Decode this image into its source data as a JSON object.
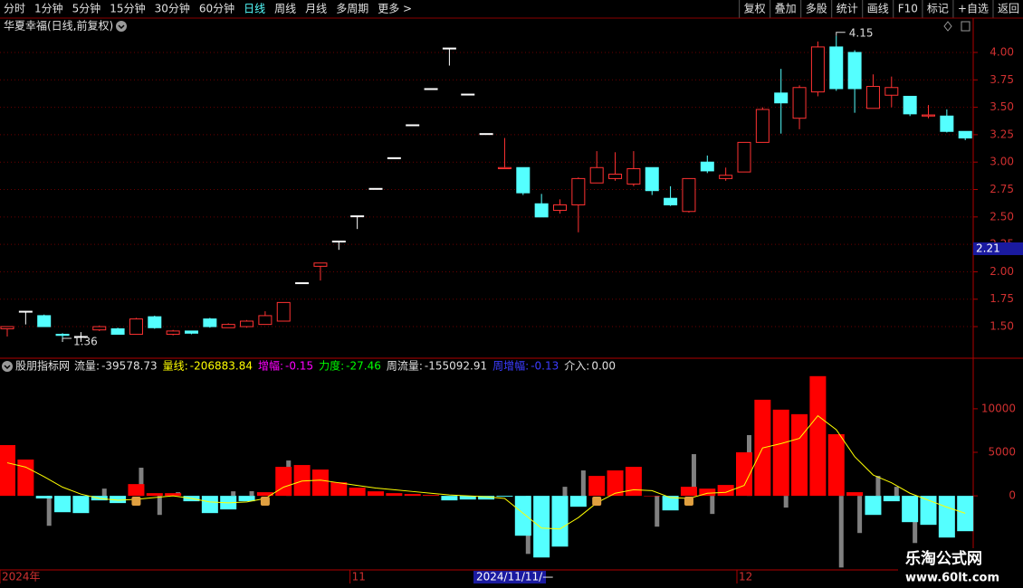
{
  "toolbar": {
    "left": [
      "分时",
      "1分钟",
      "5分钟",
      "15分钟",
      "30分钟",
      "60分钟",
      "日线",
      "周线",
      "月线",
      "多周期",
      "更多 >"
    ],
    "right": [
      "复权",
      "叠加",
      "多股",
      "统计",
      "画线",
      "F10",
      "标记",
      "+自选",
      "返回"
    ]
  },
  "cursor_date": "2024/11/11/—",
  "watermark": {
    "title": "乐淘公式网",
    "url": "www.60lt.com"
  },
  "chart_data": [
    {
      "type": "candlestick",
      "title": "华夏幸福(日线,前复权)",
      "categories": [
        "2024年",
        null,
        null,
        null,
        null,
        null,
        null,
        null,
        null,
        null,
        null,
        null,
        null,
        null,
        null,
        null,
        null,
        null,
        null,
        "11",
        null,
        null,
        null,
        null,
        null,
        null,
        null,
        null,
        null,
        null,
        null,
        null,
        null,
        null,
        null,
        null,
        null,
        null,
        null,
        null,
        "12",
        null,
        null,
        null,
        null,
        null,
        null,
        null,
        null,
        null,
        null,
        null,
        null
      ],
      "open": [
        1.48,
        1.64,
        1.6,
        1.43,
        1.41,
        1.47,
        1.48,
        1.43,
        1.59,
        1.43,
        1.46,
        1.57,
        1.49,
        1.5,
        1.52,
        1.55,
        1.9,
        2.05,
        2.28,
        2.51,
        2.76,
        3.04,
        3.34,
        3.67,
        4.04,
        3.62,
        3.26,
        2.94,
        2.95,
        2.62,
        2.56,
        2.61,
        2.81,
        2.85,
        2.8,
        2.95,
        2.67,
        2.55,
        3.0,
        2.85,
        2.91,
        3.18,
        3.63,
        3.4,
        3.64,
        4.05,
        4.0,
        3.49,
        3.61,
        3.6,
        3.42,
        3.42,
        3.28
      ],
      "high": [
        1.5,
        1.64,
        1.61,
        1.44,
        1.45,
        1.51,
        1.49,
        1.58,
        1.6,
        1.47,
        1.46,
        1.58,
        1.53,
        1.56,
        1.64,
        1.72,
        1.9,
        2.08,
        2.28,
        2.51,
        2.76,
        3.04,
        3.34,
        3.67,
        4.04,
        3.62,
        3.26,
        3.22,
        2.95,
        2.71,
        2.66,
        2.86,
        3.1,
        3.09,
        3.1,
        2.95,
        2.78,
        2.85,
        3.06,
        2.95,
        3.18,
        3.5,
        3.85,
        3.7,
        4.1,
        4.15,
        4.02,
        3.8,
        3.78,
        3.6,
        3.52,
        3.48,
        3.28
      ],
      "low": [
        1.41,
        1.52,
        1.5,
        1.36,
        1.36,
        1.46,
        1.43,
        1.43,
        1.48,
        1.42,
        1.43,
        1.49,
        1.49,
        1.49,
        1.52,
        1.55,
        1.9,
        1.92,
        2.2,
        2.39,
        2.76,
        3.04,
        3.34,
        3.67,
        3.88,
        3.62,
        3.26,
        2.94,
        2.7,
        2.5,
        2.53,
        2.36,
        2.81,
        2.83,
        2.78,
        2.7,
        2.6,
        2.54,
        2.9,
        2.83,
        2.91,
        3.18,
        3.26,
        3.3,
        3.6,
        3.65,
        3.45,
        3.49,
        3.5,
        3.42,
        3.4,
        3.27,
        3.2
      ],
      "close": [
        1.5,
        1.64,
        1.5,
        1.42,
        1.41,
        1.5,
        1.43,
        1.57,
        1.49,
        1.46,
        1.44,
        1.5,
        1.52,
        1.55,
        1.6,
        1.72,
        1.9,
        2.08,
        2.28,
        2.51,
        2.76,
        3.04,
        3.34,
        3.67,
        4.04,
        3.62,
        3.26,
        2.95,
        2.72,
        2.5,
        2.61,
        2.85,
        2.95,
        2.89,
        2.94,
        2.74,
        2.61,
        2.85,
        2.92,
        2.88,
        3.18,
        3.48,
        3.54,
        3.68,
        4.05,
        3.67,
        3.67,
        3.69,
        3.68,
        3.44,
        3.43,
        3.28,
        3.22
      ],
      "up_color": "#ff3232",
      "down_color": "#54ffff",
      "flat_color": "#ffffff",
      "max_price": 4.15,
      "min_price": 1.36,
      "cursor_price": 2.21,
      "ylim": [
        1.22,
        4.3
      ],
      "yticks": [
        {
          "value": 1.5,
          "label": "1.50"
        },
        1.75,
        {
          "value": 2,
          "label": "2.00"
        },
        2.25,
        {
          "value": 2.5,
          "label": "2.50"
        },
        2.75,
        {
          "value": 3,
          "label": "3.00"
        },
        3.25,
        {
          "value": 3.5,
          "label": "3.50"
        },
        3.75,
        {
          "value": 4,
          "label": "4.00"
        }
      ],
      "grid": true
    },
    {
      "type": "bar",
      "title": "股朋指标网",
      "legend": [
        {
          "name": "流量",
          "value": "-39578.73",
          "color": "#e0e0e0"
        },
        {
          "name": "量线",
          "value": "-206883.84",
          "color": "#ffff00"
        },
        {
          "name": "增幅",
          "value": "-0.15",
          "color": "#ff00ff"
        },
        {
          "name": "力度",
          "value": "-27.46",
          "color": "#00ff00"
        },
        {
          "name": "周流量",
          "value": "-155092.91",
          "color": "#e0e0e0"
        },
        {
          "name": "周增幅",
          "value": "-0.13",
          "color": "#3c3cff"
        },
        {
          "name": "介入",
          "value": "0.00",
          "color": "#e0e0e0"
        }
      ],
      "series": [
        {
          "kind": "bar",
          "up_color": "#ff0000",
          "down_color": "#54ffff",
          "values": [
            5830,
            4170,
            -300,
            -1880,
            -1980,
            -520,
            -830,
            1350,
            310,
            310,
            -620,
            -1980,
            -1560,
            -620,
            420,
            3330,
            3540,
            3020,
            1560,
            940,
            520,
            310,
            210,
            100,
            -520,
            -420,
            -420,
            -100,
            -4580,
            -7080,
            -5830,
            -1250,
            2290,
            2920,
            3330,
            0,
            -1670,
            1040,
            830,
            1250,
            5000,
            11040,
            9900,
            9380,
            13750,
            7080,
            420,
            -2190,
            -620,
            -3020,
            -3330,
            -4790,
            -4060
          ]
        },
        {
          "kind": "thin-bar",
          "color": "#808080",
          "values": [
            null,
            null,
            -3440,
            null,
            null,
            830,
            null,
            3230,
            -2190,
            420,
            null,
            null,
            520,
            540,
            null,
            4060,
            null,
            null,
            null,
            null,
            null,
            null,
            null,
            null,
            null,
            null,
            null,
            null,
            -6670,
            null,
            1040,
            2920,
            null,
            null,
            null,
            -3540,
            null,
            4790,
            -2080,
            null,
            6980,
            null,
            -1350,
            null,
            null,
            -8230,
            -4270,
            2290,
            1040,
            -5420,
            null,
            null,
            null
          ]
        },
        {
          "kind": "line",
          "color": "#ffff00",
          "values": [
            3800,
            3300,
            2200,
            1000,
            200,
            -300,
            -500,
            -400,
            -200,
            0,
            -300,
            -700,
            -800,
            -700,
            -300,
            1000,
            1700,
            1800,
            1500,
            1200,
            900,
            700,
            500,
            300,
            100,
            0,
            -100,
            -300,
            -2000,
            -3700,
            -3800,
            -2500,
            -800,
            300,
            700,
            600,
            -200,
            -300,
            300,
            400,
            1200,
            5500,
            6000,
            6600,
            9200,
            7600,
            4500,
            2400,
            1500,
            300,
            -500,
            -1300,
            -2000
          ]
        }
      ],
      "ylim": [
        -8300,
        15600
      ],
      "yticks": [
        0,
        5000,
        10000
      ]
    }
  ]
}
